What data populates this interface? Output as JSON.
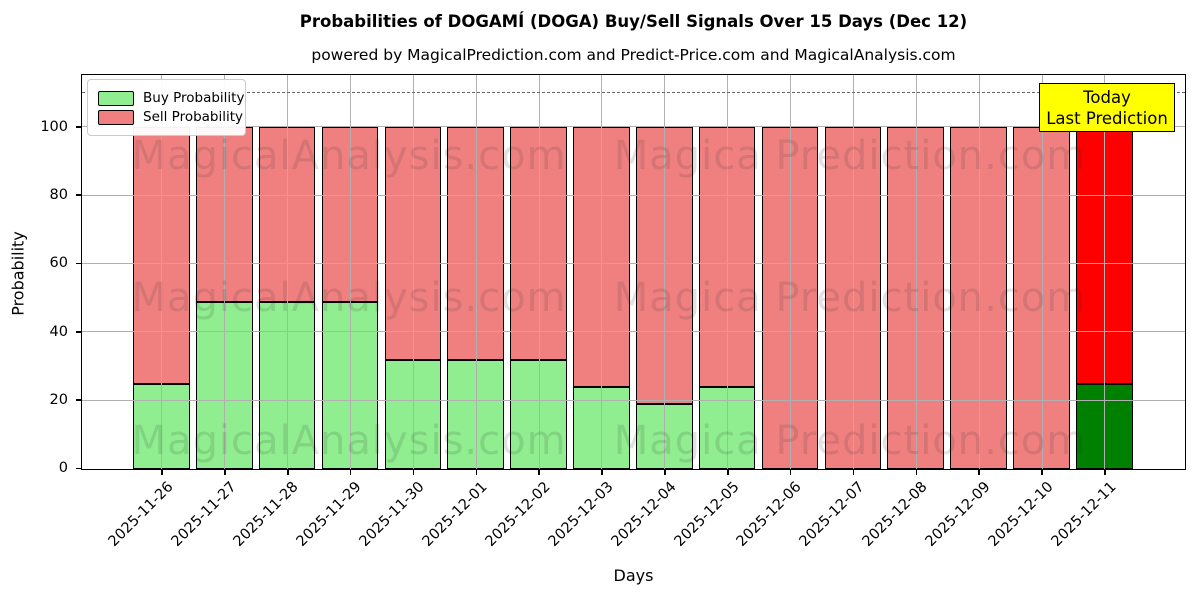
{
  "title": "Probabilities of DOGAMÍ (DOGA) Buy/Sell Signals Over 15 Days (Dec 12)",
  "subtitle": "powered by MagicalPrediction.com and Predict-Price.com and MagicalAnalysis.com",
  "legend": {
    "items": [
      {
        "label": "Buy Probability",
        "color": "#90EE90"
      },
      {
        "label": "Sell Probability",
        "color": "#F08080"
      }
    ]
  },
  "annotation_box": {
    "line1": "Today",
    "line2": "Last Prediction",
    "bg": "#FFFF00",
    "border": "#000000"
  },
  "watermarks": {
    "left": "MagicalAnalysis.com",
    "right": "Magica Prediction.com"
  },
  "axes": {
    "ylabel": "Probability",
    "xlabel": "Days",
    "yticks": [
      0,
      20,
      40,
      60,
      80,
      100
    ]
  },
  "chart_data": {
    "type": "bar",
    "stacked": true,
    "title": "Probabilities of DOGAMÍ (DOGA) Buy/Sell Signals Over 15 Days (Dec 12)",
    "xlabel": "Days",
    "ylabel": "Probability",
    "ylim": [
      0,
      115
    ],
    "yticks": [
      0,
      20,
      40,
      60,
      80,
      100
    ],
    "grid": true,
    "legend_position": "upper left",
    "dashed_line_y": 110,
    "categories": [
      "2025-11-26",
      "2025-11-27",
      "2025-11-28",
      "2025-11-29",
      "2025-11-30",
      "2025-12-01",
      "2025-12-02",
      "2025-12-03",
      "2025-12-04",
      "2025-12-05",
      "2025-12-06",
      "2025-12-07",
      "2025-12-08",
      "2025-12-09",
      "2025-12-10",
      "2025-12-11"
    ],
    "series": [
      {
        "name": "Buy Probability",
        "color": "#90EE90",
        "today_color": "#008000",
        "values": [
          25,
          49,
          49,
          49,
          32,
          32,
          32,
          24,
          19,
          24,
          0,
          0,
          0,
          0,
          0,
          25
        ]
      },
      {
        "name": "Sell Probability",
        "color": "#F08080",
        "today_color": "#FF0000",
        "values": [
          75,
          51,
          51,
          51,
          68,
          68,
          68,
          76,
          81,
          76,
          100,
          100,
          100,
          100,
          100,
          75
        ]
      }
    ],
    "today_index": 15
  }
}
